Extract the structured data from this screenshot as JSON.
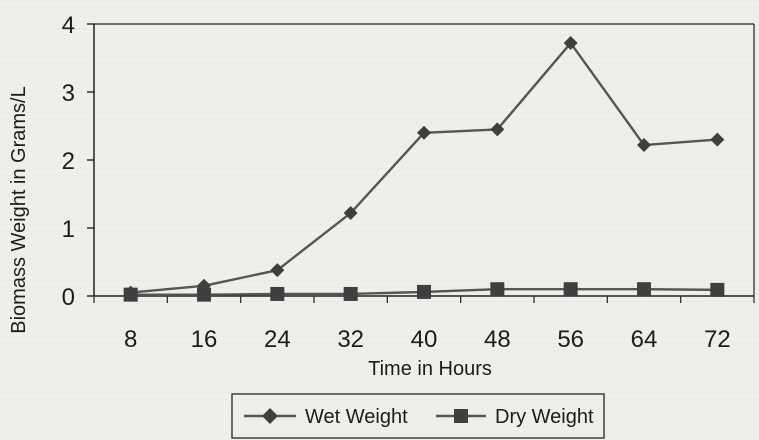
{
  "chart_data": {
    "type": "line",
    "x": [
      8,
      16,
      24,
      32,
      40,
      48,
      56,
      64,
      72
    ],
    "xlabel": "Time in Hours",
    "ylabel": "Biomass Weight in Grams/L",
    "ylim": [
      0,
      4
    ],
    "yticks": [
      0,
      1,
      2,
      3,
      4
    ],
    "legend_position": "bottom-center",
    "series": [
      {
        "name": "Wet Weight",
        "marker": "diamond",
        "values": [
          0.05,
          0.15,
          0.38,
          1.22,
          2.4,
          2.45,
          3.72,
          2.22,
          2.3
        ]
      },
      {
        "name": "Dry Weight",
        "marker": "square",
        "values": [
          0.02,
          0.02,
          0.03,
          0.03,
          0.06,
          0.1,
          0.1,
          0.1,
          0.09
        ]
      }
    ],
    "colors": {
      "line": "#555555",
      "marker": "#3f3f3f",
      "axis": "#222222",
      "background": "#eceae6"
    }
  }
}
